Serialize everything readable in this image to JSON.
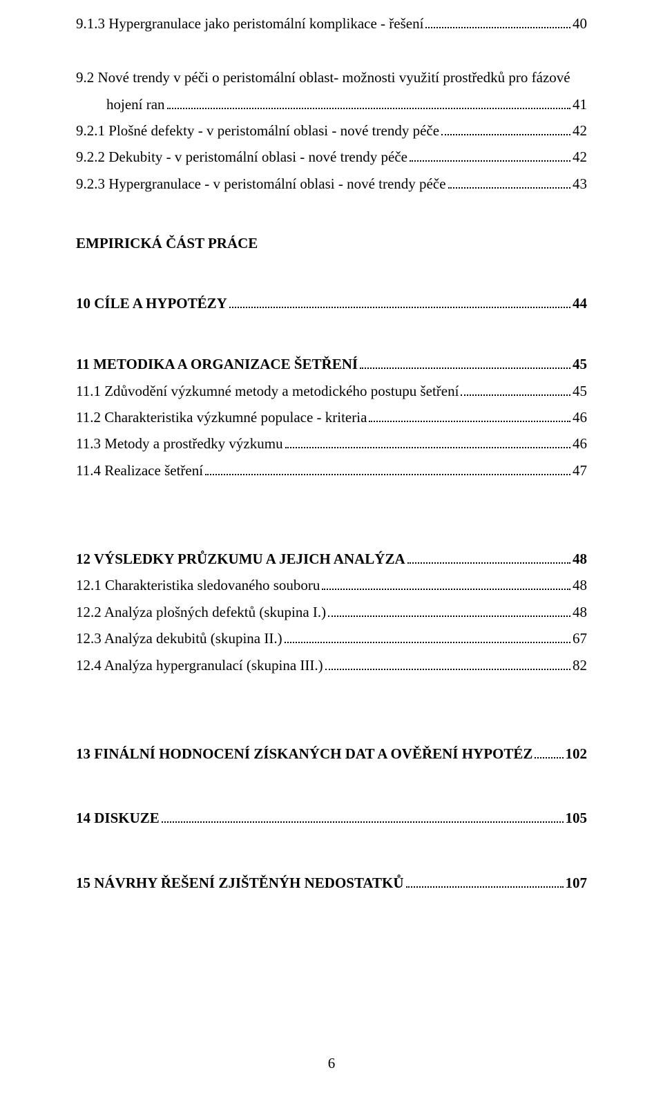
{
  "toc": {
    "l_9_1_3": "9.1.3  Hypergranulace jako peristomální komplikace - řešení",
    "p_9_1_3": "40",
    "l_9_2_a": "9.2    Nové trendy v péči o peristomální oblast- možnosti využití prostředků pro fázové",
    "l_9_2_b": "hojení ran",
    "p_9_2": "41",
    "l_9_2_1": "9.2.1 Plošné defekty  - v peristomální oblasi - nové trendy péče",
    "p_9_2_1": "42",
    "l_9_2_2": "9.2.2 Dekubity - v peristomální oblasi - nové trendy péče",
    "p_9_2_2": "42",
    "l_9_2_3": "9.2.3 Hypergranulace - v peristomální oblasi - nové trendy péče",
    "p_9_2_3": "43",
    "h_emp": "EMPIRICKÁ ČÁST PRÁCE",
    "l_10": "10   CÍLE A HYPOTÉZY",
    "p_10": "44",
    "l_11": "11    METODIKA  A ORGANIZACE ŠETŘENÍ",
    "p_11": "45",
    "l_11_1": "11.1  Zdůvodění výzkumné metody a metodického postupu šetření",
    "p_11_1": "45",
    "l_11_2": "11.2  Charakteristika výzkumné populace - kriteria",
    "p_11_2": "46",
    "l_11_3": "11.3  Metody a prostředky výzkumu",
    "p_11_3": "46",
    "l_11_4": "11.4  Realizace šetření",
    "p_11_4": "47",
    "l_12": "12  VÝSLEDKY PRŮZKUMU A JEJICH ANALÝZA",
    "p_12": "48",
    "l_12_1": "12.1  Charakteristika sledovaného souboru",
    "p_12_1": " 48",
    "l_12_2": "12.2  Analýza plošných defektů (skupina I.)",
    "p_12_2": "48",
    "l_12_3": "12.3  Analýza dekubitů (skupina II.)",
    "p_12_3": "67",
    "l_12_4": "12.4  Analýza hypergranulací (skupina III.)",
    "p_12_4": "82",
    "l_13": "13  FINÁLNÍ HODNOCENÍ ZÍSKANÝCH DAT A OVĚŘENÍ HYPOTÉZ",
    "p_13": "102",
    "l_14": "14  DISKUZE",
    "p_14": "105",
    "l_15": "15  NÁVRHY ŘEŠENÍ ZJIŠTĚNÝH NEDOSTATKŮ",
    "p_15": "107"
  },
  "footer": {
    "page": "6"
  }
}
